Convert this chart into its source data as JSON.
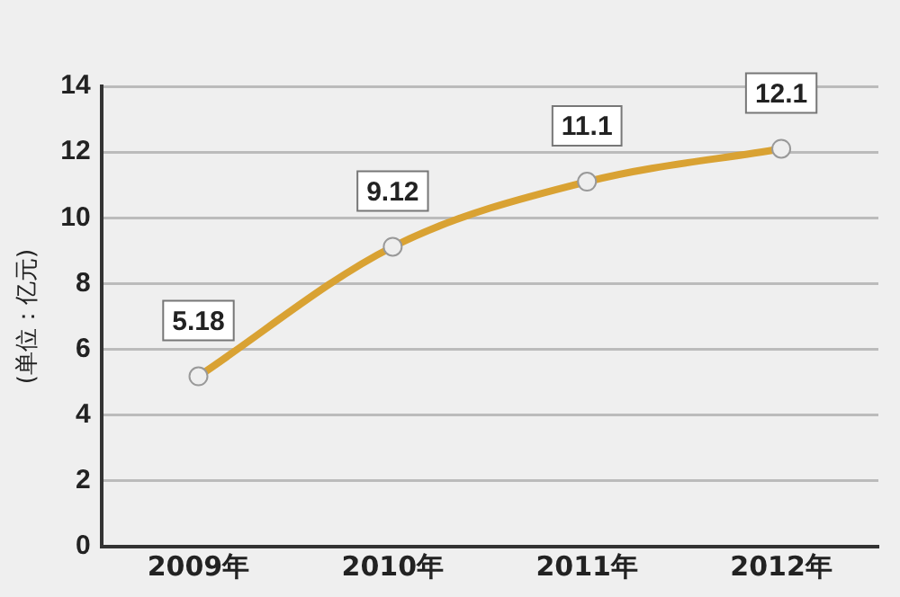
{
  "chart_data": {
    "type": "line",
    "ylabel": "(单位：亿元)",
    "categories": [
      "2009年",
      "2010年",
      "2011年",
      "2012年"
    ],
    "series": [
      {
        "color": "#d9a233",
        "values": [
          5.18,
          9.12,
          11.1,
          12.1
        ]
      }
    ],
    "ylim": [
      0,
      14
    ],
    "yticks": [
      0,
      2,
      4,
      6,
      8,
      10,
      12,
      14
    ],
    "grid": "y",
    "legend": false,
    "marker": "circle",
    "line_style": "solid",
    "data_labels": true
  }
}
